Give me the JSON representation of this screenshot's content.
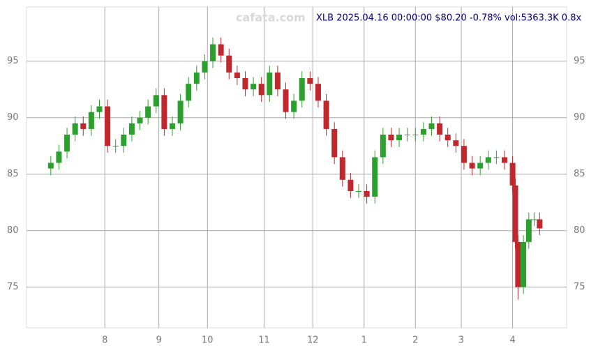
{
  "chart_data": {
    "type": "candlestick",
    "title": "XLB 2025.04.16 00:00:00 $80.20 -0.78% vol:5363.3K 0.8x",
    "watermark": "cafata.com",
    "x": [
      9,
      12,
      15,
      18,
      21,
      24,
      27,
      30,
      33,
      36,
      39,
      42,
      45,
      48,
      51,
      54,
      57,
      60,
      63,
      66,
      69,
      72,
      75,
      78,
      81,
      84,
      87,
      90,
      93,
      96,
      99,
      102,
      105,
      108,
      111,
      114,
      117,
      120,
      123,
      126,
      129,
      132,
      135,
      138,
      141,
      144,
      147,
      150,
      153,
      156,
      159,
      162,
      165,
      168,
      171,
      174,
      177,
      180,
      181,
      182,
      184,
      186,
      188,
      190
    ],
    "open": [
      85.5,
      86,
      87,
      88.5,
      89.5,
      89,
      90.5,
      91,
      87.5,
      87.5,
      88.5,
      89.5,
      90,
      91,
      92,
      89,
      89.5,
      91.5,
      93,
      94,
      95,
      96.5,
      95.5,
      94,
      93.5,
      92.5,
      93,
      92,
      94,
      92.5,
      90.5,
      91.5,
      93.5,
      93,
      91.5,
      89,
      86.5,
      84.5,
      83.5,
      83.5,
      83,
      86.5,
      88.5,
      88,
      88.5,
      88.5,
      88.5,
      89,
      89.5,
      88.5,
      88,
      87.5,
      86,
      85.5,
      86,
      86.5,
      86.5,
      86,
      84,
      79,
      75,
      79,
      81,
      81
    ],
    "high": [
      86.6,
      87.6,
      89.1,
      90.1,
      90.1,
      91.1,
      91.6,
      91.6,
      88.1,
      89.1,
      90.1,
      90.6,
      91.6,
      92.6,
      92.6,
      90.1,
      92.1,
      93.6,
      94.6,
      95.6,
      97.1,
      97.1,
      96.1,
      94.6,
      94.1,
      93.6,
      93.6,
      94.6,
      94.6,
      93.1,
      92.1,
      94.1,
      94.1,
      93.6,
      92.1,
      89.6,
      87.1,
      85.1,
      84.1,
      84.1,
      87.1,
      89.1,
      89.1,
      89.1,
      89.1,
      89.1,
      89.6,
      90.1,
      90.1,
      89.1,
      88.6,
      88.1,
      86.6,
      86.6,
      87.1,
      87.1,
      87.1,
      86.6,
      84.6,
      79.6,
      79.6,
      81.6,
      81.6,
      81.6
    ],
    "low": [
      84.9,
      85.4,
      86.4,
      87.9,
      88.4,
      88.4,
      89.9,
      86.9,
      86.9,
      86.9,
      87.9,
      88.9,
      89.4,
      90.4,
      88.4,
      88.4,
      88.9,
      90.9,
      92.4,
      93.4,
      94.4,
      94.9,
      93.4,
      92.9,
      91.9,
      91.9,
      91.4,
      91.4,
      91.9,
      89.9,
      89.9,
      90.9,
      92.4,
      90.9,
      88.4,
      85.9,
      83.9,
      82.9,
      82.9,
      82.4,
      82.4,
      85.9,
      87.4,
      87.4,
      87.9,
      87.9,
      87.9,
      88.4,
      87.9,
      87.4,
      86.9,
      85.4,
      84.9,
      84.9,
      85.4,
      85.9,
      85.4,
      83.4,
      78.4,
      73.9,
      74.4,
      78.4,
      80.4,
      79.6
    ],
    "close": [
      86,
      87,
      88.5,
      89.5,
      89,
      90.5,
      91,
      87.5,
      87.5,
      88.5,
      89.5,
      90,
      91,
      92,
      89,
      89.5,
      91.5,
      93,
      94,
      95,
      96.5,
      95.5,
      94,
      93.5,
      92.5,
      93,
      92,
      94,
      92.5,
      90.5,
      91.5,
      93.5,
      93,
      91.5,
      89,
      86.5,
      84.5,
      83.5,
      83.5,
      83,
      86.5,
      88.5,
      88,
      88.5,
      88.5,
      88.5,
      89,
      89.5,
      88.5,
      88,
      87.5,
      86,
      85.5,
      86,
      86.5,
      86.5,
      86,
      84,
      79,
      75,
      79,
      81,
      81,
      80.2
    ],
    "up_color": "#2ca02c",
    "down_color": "#c0282d",
    "xlim": [
      0,
      200
    ],
    "xticks": [
      {
        "value": 29,
        "label": "8"
      },
      {
        "value": 49,
        "label": "9"
      },
      {
        "value": 67,
        "label": "10"
      },
      {
        "value": 88,
        "label": "11"
      },
      {
        "value": 106,
        "label": "12"
      },
      {
        "value": 125,
        "label": "1"
      },
      {
        "value": 144,
        "label": "2"
      },
      {
        "value": 161,
        "label": "3"
      },
      {
        "value": 180,
        "label": "4"
      }
    ],
    "ylim": [
      71.4,
      99.8
    ],
    "yticks": [
      75,
      80,
      85,
      90,
      95
    ],
    "grid": true
  }
}
